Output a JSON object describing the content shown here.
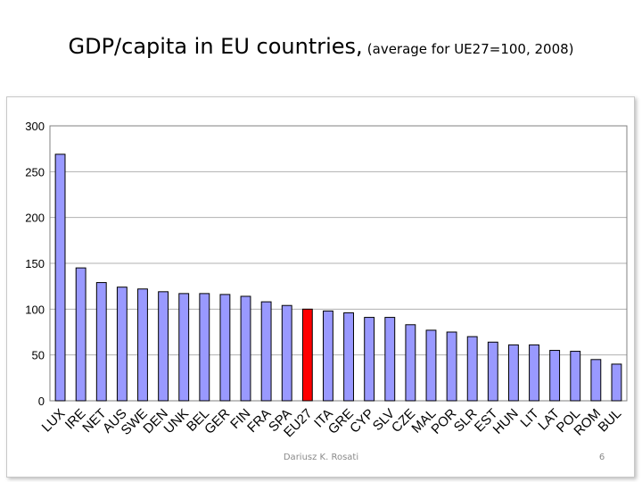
{
  "slide": {
    "title_main": "GDP/capita in EU countries,",
    "title_sub": "(average for UE27=100, 2008)",
    "author": "Dariusz K. Rosati",
    "page_number": "6"
  },
  "chart_data": {
    "type": "bar",
    "title": "",
    "xlabel": "",
    "ylabel": "",
    "ylim": [
      0,
      300
    ],
    "yticks": [
      0,
      50,
      100,
      150,
      200,
      250,
      300
    ],
    "grid": true,
    "legend": "none",
    "bar_color": "#9999ff",
    "highlight_color": "#ff0000",
    "highlight_category": "EU27",
    "categories": [
      "LUX",
      "IRE",
      "NET",
      "AUS",
      "SWE",
      "DEN",
      "UNK",
      "BEL",
      "GER",
      "FIN",
      "FRA",
      "SPA",
      "EU27",
      "ITA",
      "GRE",
      "CYP",
      "SLV",
      "CZE",
      "MAL",
      "POR",
      "SLR",
      "EST",
      "HUN",
      "LIT",
      "LAT",
      "POL",
      "ROM",
      "BUL"
    ],
    "values": [
      269,
      145,
      129,
      124,
      122,
      119,
      117,
      117,
      116,
      114,
      108,
      104,
      100,
      98,
      96,
      91,
      91,
      83,
      77,
      75,
      70,
      64,
      61,
      61,
      55,
      54,
      45,
      40
    ]
  }
}
